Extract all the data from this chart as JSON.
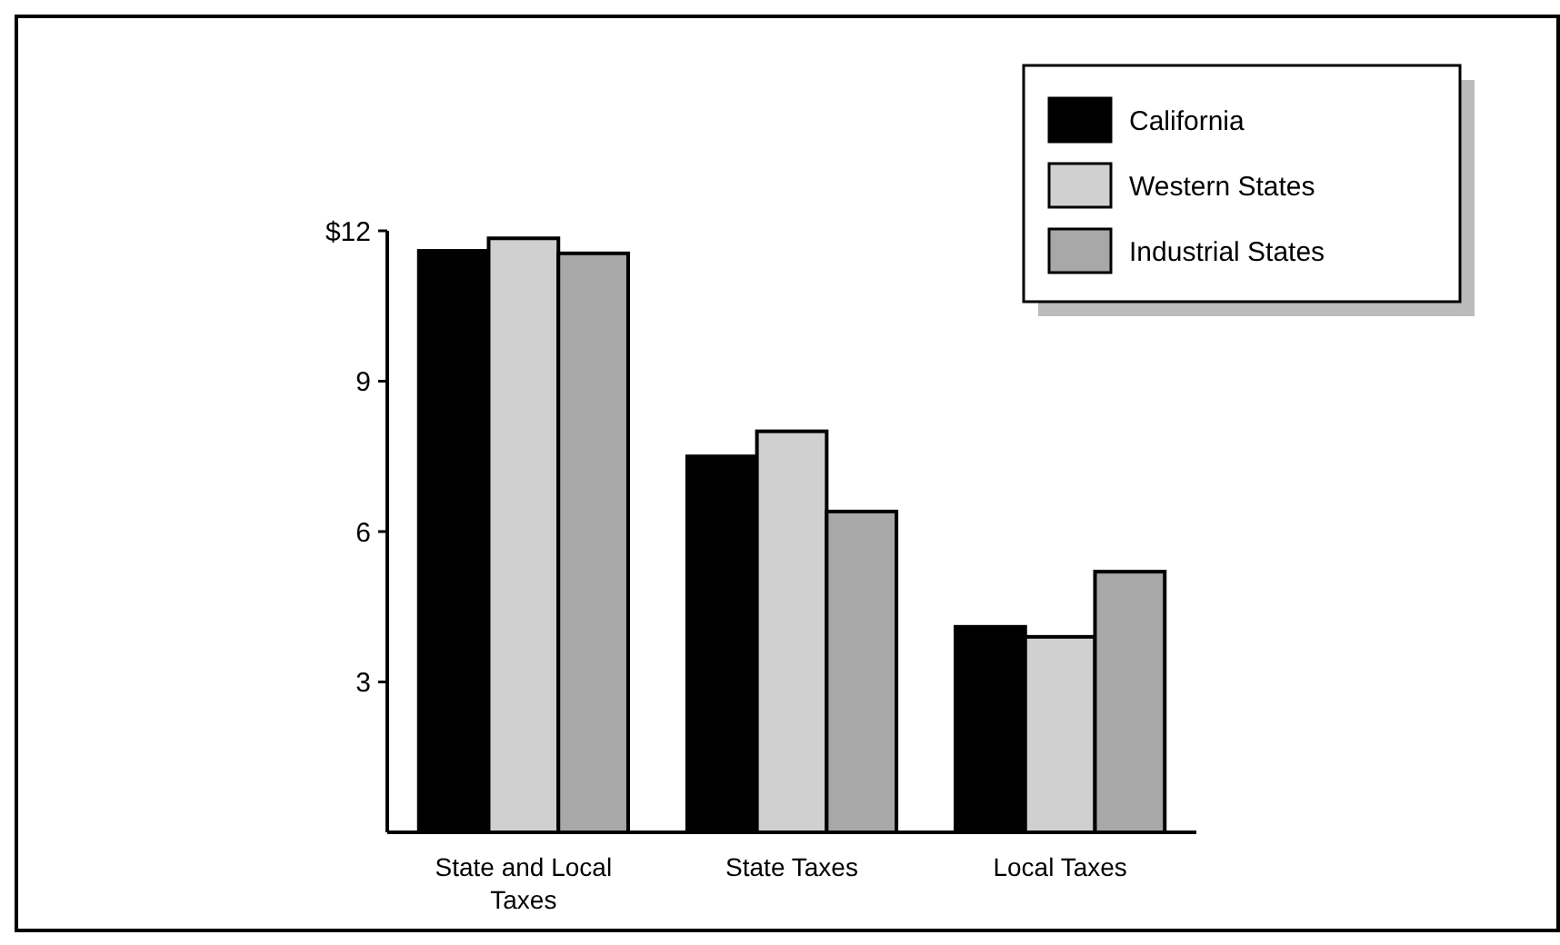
{
  "chart_data": {
    "type": "bar",
    "categories": [
      "State and Local Taxes",
      "State Taxes",
      "Local Taxes"
    ],
    "series": [
      {
        "name": "California",
        "color": "#000000",
        "values": [
          11.6,
          7.5,
          4.1
        ]
      },
      {
        "name": "Western States",
        "color": "#d0d0d0",
        "values": [
          11.85,
          8.0,
          3.9
        ]
      },
      {
        "name": "Industrial States",
        "color": "#a8a8a8",
        "values": [
          11.55,
          6.4,
          5.2
        ]
      }
    ],
    "ylim": [
      0,
      12
    ],
    "yticks": [
      3,
      6,
      9,
      {
        "value": 12,
        "label": "$12"
      }
    ],
    "legend": "top right"
  }
}
